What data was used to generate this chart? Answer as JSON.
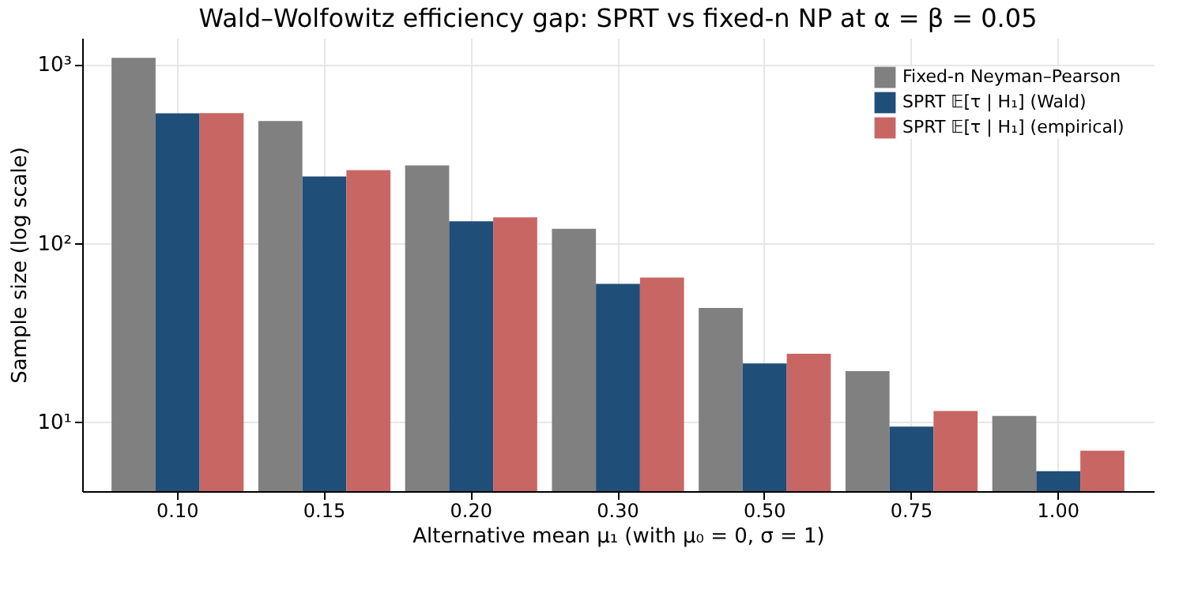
{
  "chart_data": {
    "type": "bar",
    "title": "Wald–Wolfowitz efficiency gap: SPRT vs fixed-n NP at α = β = 0.05",
    "xlabel": "Alternative mean μ₁  (with μ₀ = 0, σ = 1)",
    "ylabel": "Sample size (log scale)",
    "categories": [
      "0.10",
      "0.15",
      "0.20",
      "0.30",
      "0.50",
      "0.75",
      "1.00"
    ],
    "series": [
      {
        "name": "Fixed-n Neyman–Pearson",
        "color": "#808080",
        "values": [
          1082,
          481,
          271,
          120,
          43.3,
          19.2,
          10.8
        ]
      },
      {
        "name": "SPRT 𝔼[τ | H₁] (Wald)",
        "color": "#1f4e79",
        "values": [
          530,
          235,
          132,
          59,
          21.2,
          9.4,
          5.3
        ]
      },
      {
        "name": "SPRT 𝔼[τ | H₁] (empirical)",
        "color": "#c86664",
        "values": [
          532,
          255,
          139,
          64,
          24,
          11.5,
          6.9
        ]
      }
    ],
    "log": true,
    "ylim": [
      4.1,
      1400
    ],
    "yticks": [
      {
        "value": 10,
        "label": "10¹"
      },
      {
        "value": 100,
        "label": "10²"
      },
      {
        "value": 1000,
        "label": "10³"
      }
    ],
    "grid": true,
    "legend": "top right"
  }
}
